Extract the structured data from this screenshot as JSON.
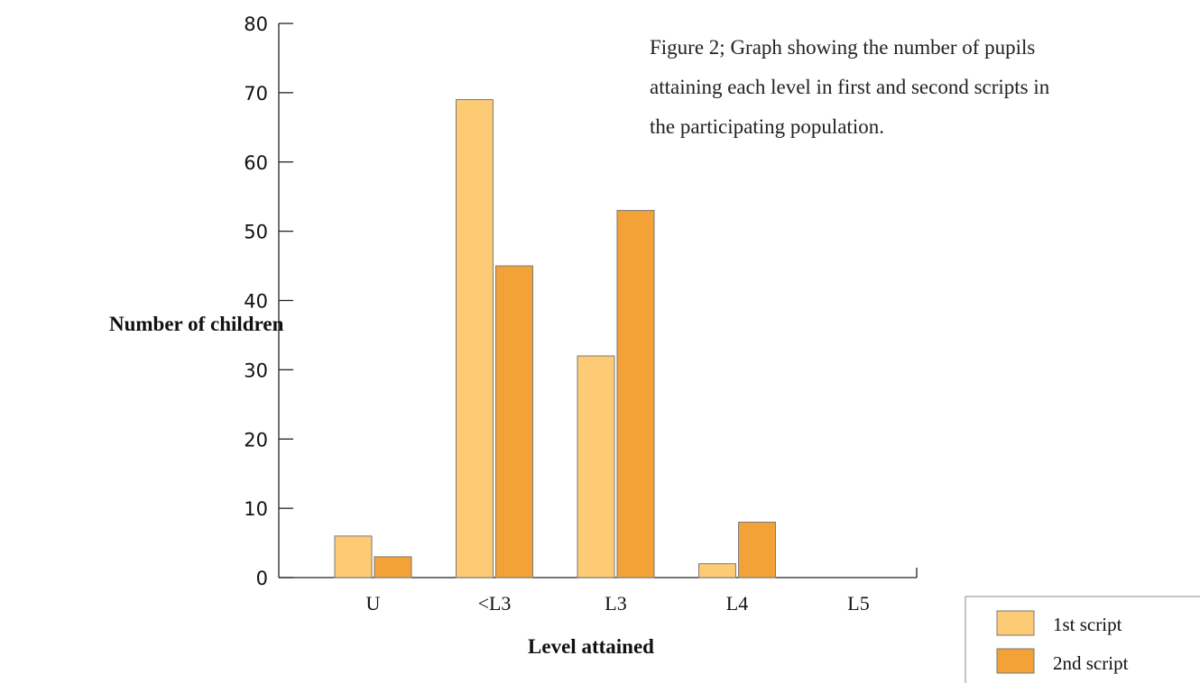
{
  "caption": {
    "line1": "Figure 2; Graph showing the number of pupils",
    "line2": "attaining each level in first and second scripts in",
    "line3": "the participating population."
  },
  "chart_data": {
    "type": "bar",
    "categories": [
      "U",
      "<L3",
      "L3",
      "L4",
      "L5"
    ],
    "series": [
      {
        "name": "1st script",
        "values": [
          6,
          69,
          32,
          2,
          0
        ],
        "color": "#FDCB74"
      },
      {
        "name": "2nd script",
        "values": [
          3,
          45,
          53,
          8,
          0
        ],
        "color": "#F2A236"
      }
    ],
    "xlabel": "Level attained",
    "ylabel": "Number of children",
    "ylim": [
      0,
      80
    ],
    "yticks": [
      0,
      10,
      20,
      30,
      40,
      50,
      60,
      70,
      80
    ],
    "grid": false,
    "legend_position": "bottom-right"
  }
}
